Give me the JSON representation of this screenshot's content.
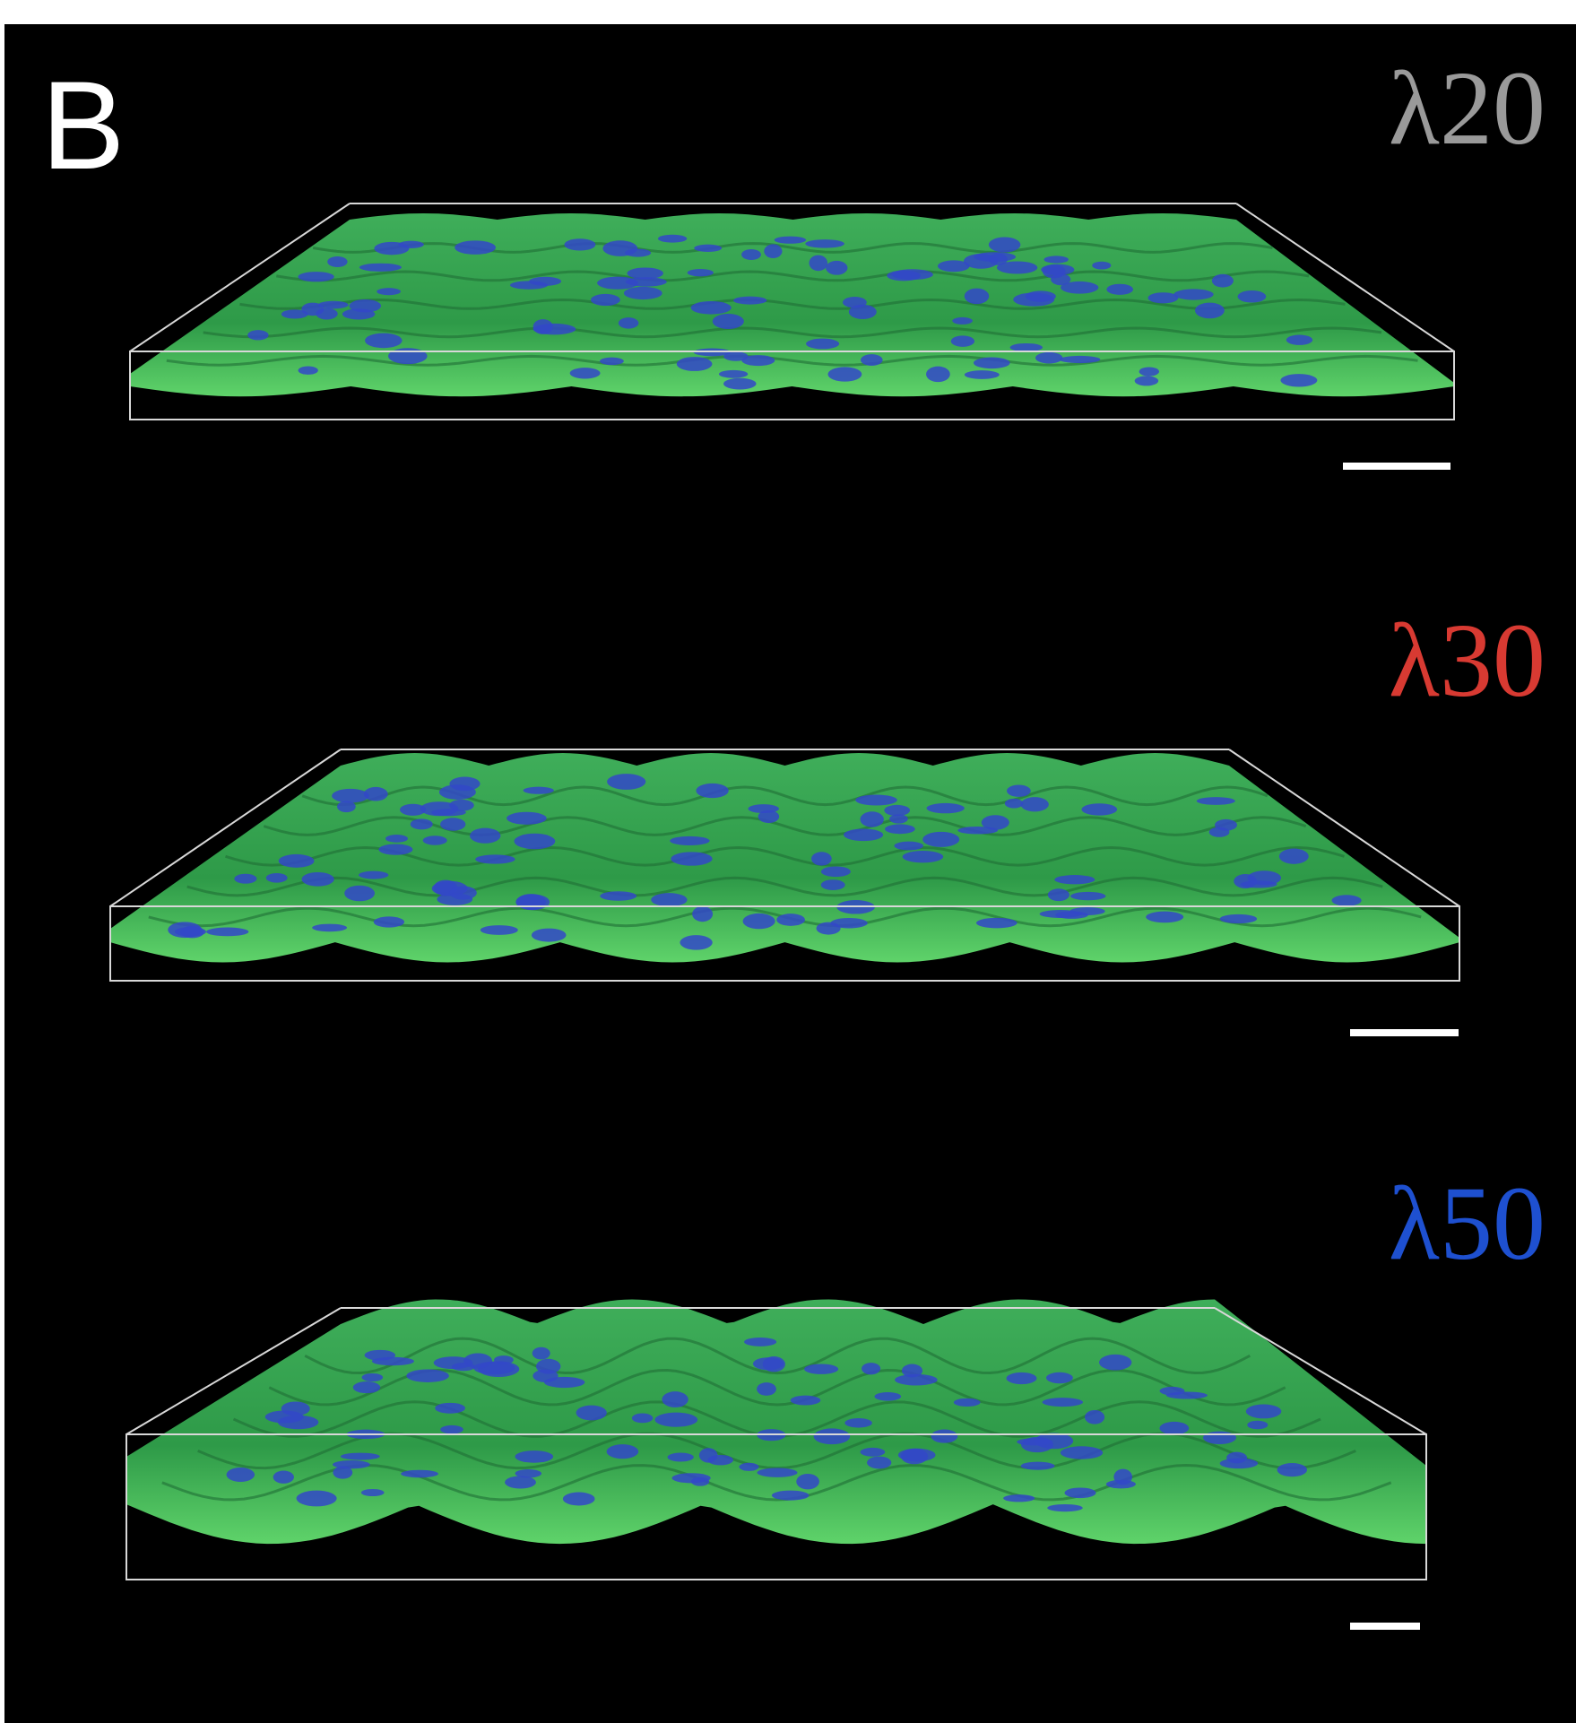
{
  "panel_label": "B",
  "panels": [
    {
      "label": "λ20"
    },
    {
      "label": "λ30"
    },
    {
      "label": "λ50"
    }
  ]
}
